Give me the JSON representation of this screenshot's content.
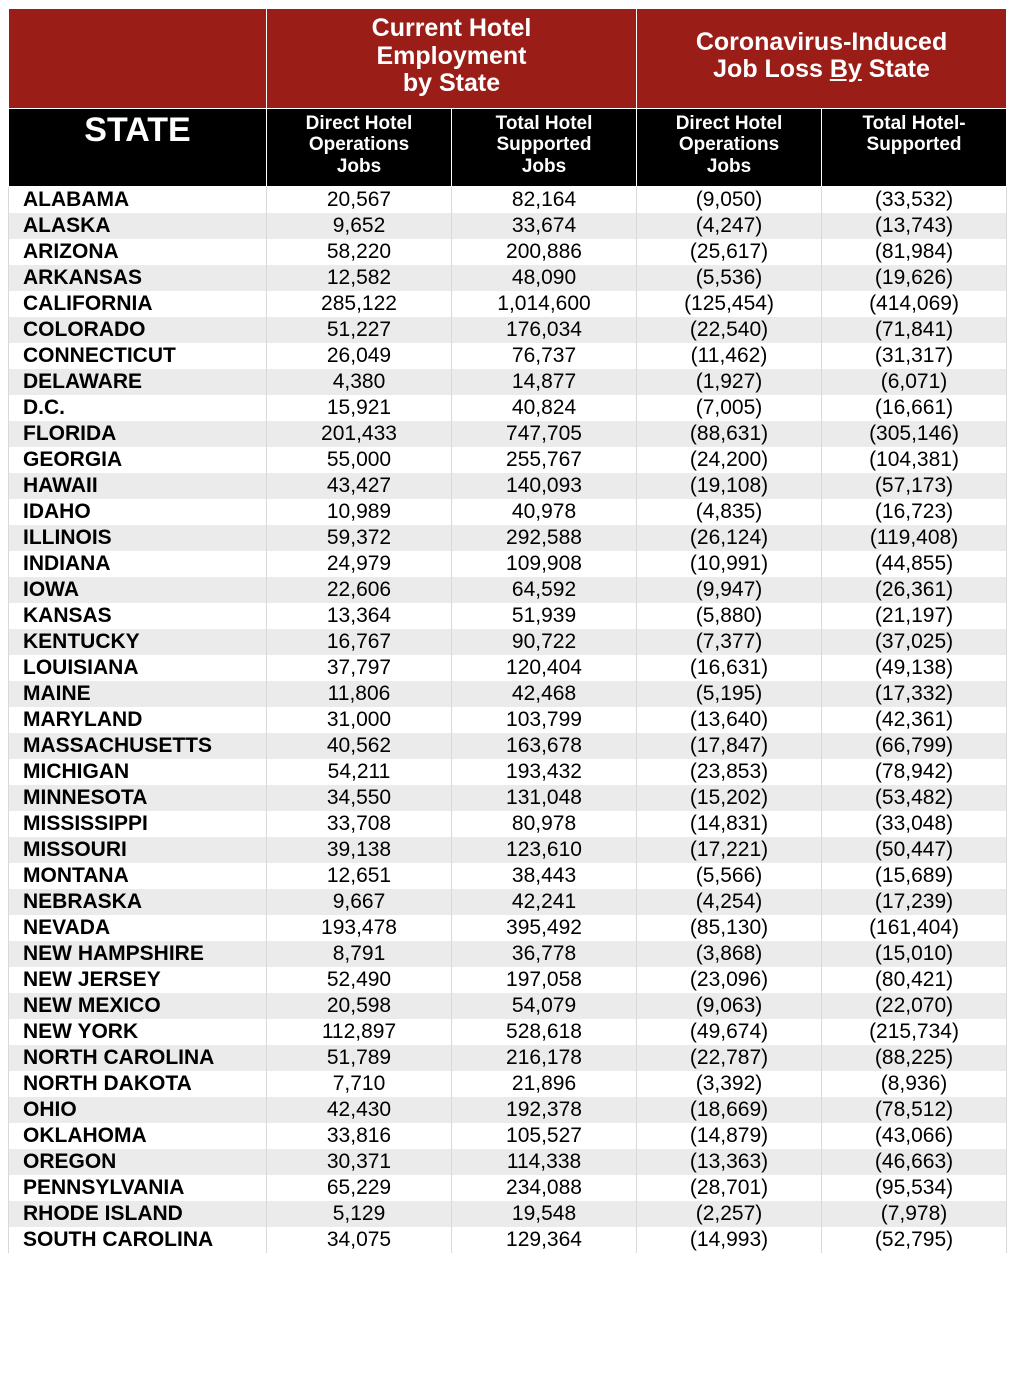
{
  "header": {
    "group1": "Current Hotel<br>Employment<br>by State",
    "group2_prefix": "Coronavirus-Induced<br>Job Loss ",
    "group2_underlined": "By",
    "group2_suffix": " State"
  },
  "subheader": {
    "state": "STATE",
    "col1": "Direct Hotel<br>Operations<br>Jobs",
    "col2": "Total Hotel<br>Supported<br>Jobs",
    "col3": "Direct Hotel<br>Operations<br>Jobs",
    "col4": "Total Hotel-<br>Supported"
  },
  "colors": {
    "header_bg": "#9a1d18",
    "subheader_bg": "#000000",
    "row_alt_bg": "#ebebeb",
    "row_bg": "#ffffff"
  },
  "rows": [
    {
      "state": "ALABAMA",
      "c1": "20,567",
      "c2": "82,164",
      "c3": "(9,050)",
      "c4": "(33,532)"
    },
    {
      "state": "ALASKA",
      "c1": "9,652",
      "c2": "33,674",
      "c3": "(4,247)",
      "c4": "(13,743)"
    },
    {
      "state": "ARIZONA",
      "c1": "58,220",
      "c2": "200,886",
      "c3": "(25,617)",
      "c4": "(81,984)"
    },
    {
      "state": "ARKANSAS",
      "c1": "12,582",
      "c2": "48,090",
      "c3": "(5,536)",
      "c4": "(19,626)"
    },
    {
      "state": "CALIFORNIA",
      "c1": "285,122",
      "c2": "1,014,600",
      "c3": "(125,454)",
      "c4": "(414,069)"
    },
    {
      "state": "COLORADO",
      "c1": "51,227",
      "c2": "176,034",
      "c3": "(22,540)",
      "c4": "(71,841)"
    },
    {
      "state": "CONNECTICUT",
      "c1": "26,049",
      "c2": "76,737",
      "c3": "(11,462)",
      "c4": "(31,317)"
    },
    {
      "state": "DELAWARE",
      "c1": "4,380",
      "c2": "14,877",
      "c3": "(1,927)",
      "c4": "(6,071)"
    },
    {
      "state": "D.C.",
      "c1": "15,921",
      "c2": "40,824",
      "c3": "(7,005)",
      "c4": "(16,661)"
    },
    {
      "state": "FLORIDA",
      "c1": "201,433",
      "c2": "747,705",
      "c3": "(88,631)",
      "c4": "(305,146)"
    },
    {
      "state": "GEORGIA",
      "c1": "55,000",
      "c2": "255,767",
      "c3": "(24,200)",
      "c4": "(104,381)"
    },
    {
      "state": "HAWAII",
      "c1": "43,427",
      "c2": "140,093",
      "c3": "(19,108)",
      "c4": "(57,173)"
    },
    {
      "state": "IDAHO",
      "c1": "10,989",
      "c2": "40,978",
      "c3": "(4,835)",
      "c4": "(16,723)"
    },
    {
      "state": "ILLINOIS",
      "c1": "59,372",
      "c2": "292,588",
      "c3": "(26,124)",
      "c4": "(119,408)"
    },
    {
      "state": "INDIANA",
      "c1": "24,979",
      "c2": "109,908",
      "c3": "(10,991)",
      "c4": "(44,855)"
    },
    {
      "state": "IOWA",
      "c1": "22,606",
      "c2": "64,592",
      "c3": "(9,947)",
      "c4": "(26,361)"
    },
    {
      "state": "KANSAS",
      "c1": "13,364",
      "c2": "51,939",
      "c3": "(5,880)",
      "c4": "(21,197)"
    },
    {
      "state": "KENTUCKY",
      "c1": "16,767",
      "c2": "90,722",
      "c3": "(7,377)",
      "c4": "(37,025)"
    },
    {
      "state": "LOUISIANA",
      "c1": "37,797",
      "c2": "120,404",
      "c3": "(16,631)",
      "c4": "(49,138)"
    },
    {
      "state": "MAINE",
      "c1": "11,806",
      "c2": "42,468",
      "c3": "(5,195)",
      "c4": "(17,332)"
    },
    {
      "state": "MARYLAND",
      "c1": "31,000",
      "c2": "103,799",
      "c3": "(13,640)",
      "c4": "(42,361)"
    },
    {
      "state": "MASSACHUSETTS",
      "c1": "40,562",
      "c2": "163,678",
      "c3": "(17,847)",
      "c4": "(66,799)"
    },
    {
      "state": "MICHIGAN",
      "c1": "54,211",
      "c2": "193,432",
      "c3": "(23,853)",
      "c4": "(78,942)"
    },
    {
      "state": "MINNESOTA",
      "c1": "34,550",
      "c2": "131,048",
      "c3": "(15,202)",
      "c4": "(53,482)"
    },
    {
      "state": "MISSISSIPPI",
      "c1": "33,708",
      "c2": "80,978",
      "c3": "(14,831)",
      "c4": "(33,048)"
    },
    {
      "state": "MISSOURI",
      "c1": "39,138",
      "c2": "123,610",
      "c3": "(17,221)",
      "c4": "(50,447)"
    },
    {
      "state": "MONTANA",
      "c1": "12,651",
      "c2": "38,443",
      "c3": "(5,566)",
      "c4": "(15,689)"
    },
    {
      "state": "NEBRASKA",
      "c1": "9,667",
      "c2": "42,241",
      "c3": "(4,254)",
      "c4": "(17,239)"
    },
    {
      "state": "NEVADA",
      "c1": "193,478",
      "c2": "395,492",
      "c3": "(85,130)",
      "c4": "(161,404)"
    },
    {
      "state": "NEW HAMPSHIRE",
      "c1": "8,791",
      "c2": "36,778",
      "c3": "(3,868)",
      "c4": "(15,010)"
    },
    {
      "state": "NEW JERSEY",
      "c1": "52,490",
      "c2": "197,058",
      "c3": "(23,096)",
      "c4": "(80,421)"
    },
    {
      "state": "NEW MEXICO",
      "c1": "20,598",
      "c2": "54,079",
      "c3": "(9,063)",
      "c4": "(22,070)"
    },
    {
      "state": "NEW YORK",
      "c1": "112,897",
      "c2": "528,618",
      "c3": "(49,674)",
      "c4": "(215,734)"
    },
    {
      "state": "NORTH CAROLINA",
      "c1": "51,789",
      "c2": "216,178",
      "c3": "(22,787)",
      "c4": "(88,225)"
    },
    {
      "state": "NORTH DAKOTA",
      "c1": "7,710",
      "c2": "21,896",
      "c3": "(3,392)",
      "c4": "(8,936)"
    },
    {
      "state": "OHIO",
      "c1": "42,430",
      "c2": "192,378",
      "c3": "(18,669)",
      "c4": "(78,512)"
    },
    {
      "state": "OKLAHOMA",
      "c1": "33,816",
      "c2": "105,527",
      "c3": "(14,879)",
      "c4": "(43,066)"
    },
    {
      "state": "OREGON",
      "c1": "30,371",
      "c2": "114,338",
      "c3": "(13,363)",
      "c4": "(46,663)"
    },
    {
      "state": "PENNSYLVANIA",
      "c1": "65,229",
      "c2": "234,088",
      "c3": "(28,701)",
      "c4": "(95,534)"
    },
    {
      "state": "RHODE ISLAND",
      "c1": "5,129",
      "c2": "19,548",
      "c3": "(2,257)",
      "c4": "(7,978)"
    },
    {
      "state": "SOUTH CAROLINA",
      "c1": "34,075",
      "c2": "129,364",
      "c3": "(14,993)",
      "c4": "(52,795)"
    }
  ]
}
